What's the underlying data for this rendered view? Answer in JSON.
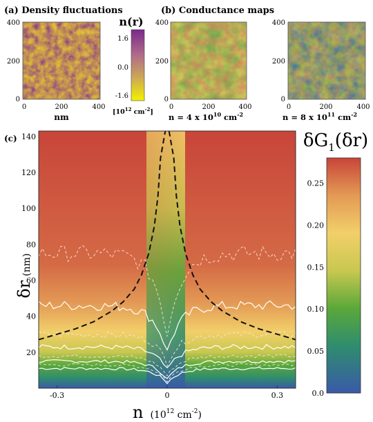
{
  "panel_a": {
    "title": "(a) Density fluctuations",
    "xlabel": "nm",
    "x_ticks": [
      "0",
      "200",
      "400"
    ],
    "y_ticks": [
      "400",
      "200",
      "0"
    ],
    "colorbar": {
      "title": "n(r)",
      "ticks": [
        "1.6",
        "0.0",
        "-1.6"
      ],
      "unit_base": "[10",
      "unit_exp": "12",
      "unit_tail": " cm",
      "unit_exp2": "-2",
      "unit_close": "]",
      "colors": [
        "#7a2a8c",
        "#b06a8a",
        "#c9a35a",
        "#f4f000"
      ]
    }
  },
  "panel_b": {
    "title": "(b) Conductance maps",
    "x_ticks": [
      "0",
      "200",
      "400"
    ],
    "y_ticks": [
      "400",
      "200",
      "0"
    ],
    "map1_label": "n = 4 x 10",
    "map1_exp": "10",
    "map1_tail": " cm",
    "map1_exp2": "-2",
    "map2_label": "n = 8 x 10",
    "map2_exp": "11",
    "map2_tail": " cm",
    "map2_exp2": "-2"
  },
  "panel_c": {
    "label": "(c)",
    "ylabel_main": "δr",
    "ylabel_unit": "(nm)",
    "xlabel_main": "n",
    "xlabel_unit_base": "(10",
    "xlabel_unit_exp": "12",
    "xlabel_unit_tail": " cm",
    "xlabel_unit_exp2": "-2",
    "xlabel_unit_close": ")",
    "colorbar_title": "δG",
    "colorbar_sub": "1",
    "colorbar_arg": "(δr)",
    "colorbar_ticks": [
      "0.25",
      "0.20",
      "0.15",
      "0.10",
      "0.05",
      "0.0"
    ]
  },
  "chart_data": {
    "type": "heatmap",
    "xlim": [
      -0.35,
      0.35
    ],
    "ylim": [
      0,
      143
    ],
    "x_ticks": [
      -0.3,
      0,
      0.3
    ],
    "x_tick_labels": [
      "-0.3",
      "0",
      "0.3"
    ],
    "y_ticks": [
      20,
      40,
      60,
      80,
      100,
      120,
      140
    ],
    "y_tick_labels": [
      "20",
      "40",
      "60",
      "80",
      "100",
      "120",
      "140"
    ],
    "color_range": [
      0.0,
      0.28
    ],
    "colormap": [
      "#3a5aa8",
      "#2f8d6e",
      "#5aa83a",
      "#c8c850",
      "#f2cf6a",
      "#e39a55",
      "#c8453a"
    ],
    "dashed_curve": {
      "n": [
        -0.35,
        -0.3,
        -0.25,
        -0.2,
        -0.15,
        -0.12,
        -0.09,
        -0.07,
        -0.05,
        -0.035,
        -0.025,
        -0.018,
        0.018,
        0.025,
        0.035,
        0.05,
        0.07,
        0.09,
        0.12,
        0.15,
        0.2,
        0.25,
        0.3,
        0.35
      ],
      "dr": [
        27,
        30,
        33,
        37,
        43,
        48,
        55,
        63,
        75,
        90,
        107,
        128,
        128,
        107,
        90,
        75,
        63,
        55,
        48,
        43,
        37,
        33,
        30,
        27
      ]
    },
    "solid_contours": [
      {
        "level": 0.1,
        "dr_far": 11,
        "dr_center": 3
      },
      {
        "level": 0.15,
        "dr_far": 15,
        "dr_center": 5
      },
      {
        "level": 0.2,
        "dr_far": 23,
        "dr_center": 10
      },
      {
        "level": 0.25,
        "dr_far": 46,
        "dr_center": 20
      }
    ],
    "dashed_contours": [
      {
        "level": 0.125,
        "dr_far": 13,
        "dr_center": 4
      },
      {
        "level": 0.175,
        "dr_far": 18,
        "dr_center": 7
      },
      {
        "level": 0.225,
        "dr_far": 30,
        "dr_center": 14
      },
      {
        "level": 0.265,
        "dr_far": 75,
        "dr_center": 30
      }
    ]
  }
}
